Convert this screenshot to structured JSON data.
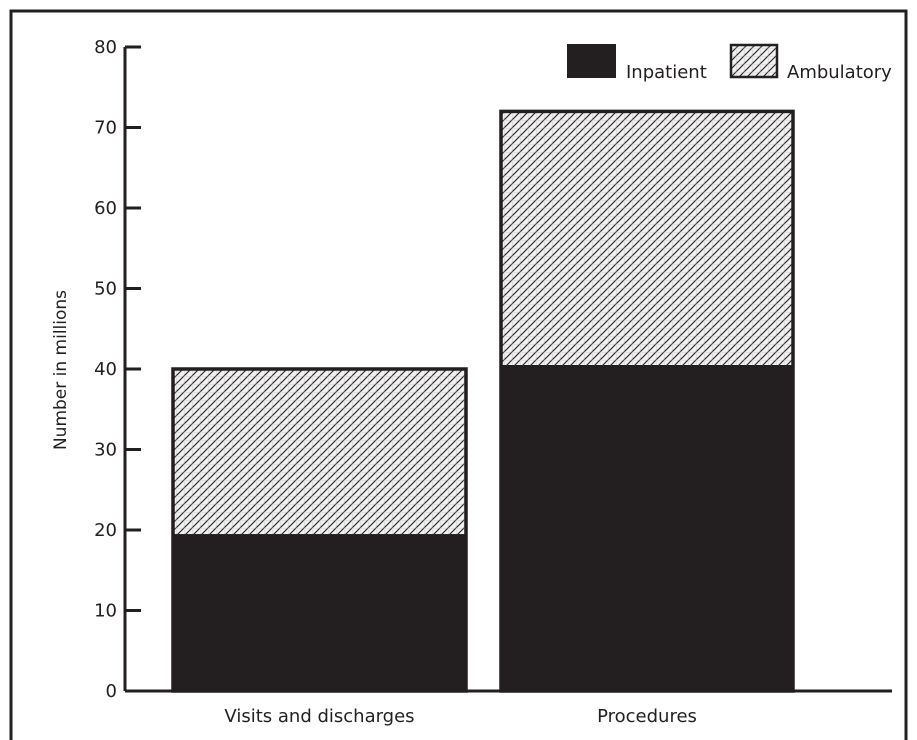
{
  "chart_data": {
    "type": "bar",
    "stacked": true,
    "categories": [
      "Visits and discharges",
      "Procedures"
    ],
    "series": [
      {
        "name": "Inpatient",
        "values": [
          19.5,
          40.5
        ]
      },
      {
        "name": "Ambulatory",
        "values": [
          20.5,
          31.5
        ]
      }
    ],
    "title": "",
    "xlabel": "",
    "ylabel": "Number in millions",
    "ylim": [
      0,
      80
    ],
    "yticks": [
      "0",
      "10",
      "20",
      "30",
      "40",
      "50",
      "60",
      "70",
      "80"
    ],
    "grid": false,
    "legend_position": "top-right"
  },
  "colors": {
    "inpatient": "#231f20",
    "ambulatory_fill": "hatched gray",
    "axis": "#231f20",
    "frame": "#231f20"
  }
}
